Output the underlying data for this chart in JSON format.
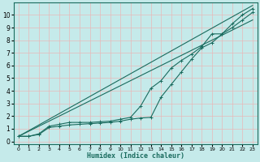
{
  "xlabel": "Humidex (Indice chaleur)",
  "ylabel": "",
  "background_color": "#c5eaea",
  "grid_color": "#e8b8b8",
  "line_color": "#1a6b5e",
  "xlim": [
    -0.5,
    23.5
  ],
  "ylim": [
    -0.2,
    11
  ],
  "xticks": [
    0,
    1,
    2,
    3,
    4,
    5,
    6,
    7,
    8,
    9,
    10,
    11,
    12,
    13,
    14,
    15,
    16,
    17,
    18,
    19,
    20,
    21,
    22,
    23
  ],
  "yticks": [
    0,
    1,
    2,
    3,
    4,
    5,
    6,
    7,
    8,
    9,
    10
  ],
  "series": [
    {
      "x": [
        0,
        1,
        2,
        3,
        4,
        5,
        6,
        7,
        8,
        9,
        10,
        11,
        12,
        13,
        14,
        15,
        16,
        17,
        18,
        19,
        20,
        21,
        22,
        23
      ],
      "y": [
        0.4,
        0.85,
        1.3,
        1.75,
        2.2,
        2.65,
        3.1,
        3.55,
        4.0,
        4.45,
        4.9,
        5.35,
        5.8,
        6.25,
        6.7,
        7.15,
        7.6,
        8.05,
        8.5,
        8.95,
        9.4,
        9.85,
        10.3,
        10.75
      ]
    },
    {
      "x": [
        0,
        1,
        2,
        3,
        4,
        5,
        6,
        7,
        8,
        9,
        10,
        11,
        12,
        13,
        14,
        15,
        16,
        17,
        18,
        19,
        20,
        21,
        22,
        23
      ],
      "y": [
        0.4,
        0.4,
        0.6,
        1.2,
        1.35,
        1.5,
        1.5,
        1.5,
        1.55,
        1.6,
        1.75,
        1.9,
        2.8,
        4.2,
        4.8,
        5.8,
        6.4,
        6.9,
        7.5,
        8.5,
        8.5,
        9.3,
        10.0,
        10.5
      ],
      "marker": "+"
    },
    {
      "x": [
        0,
        1,
        2,
        3,
        4,
        5,
        6,
        7,
        8,
        9,
        10,
        11,
        12,
        13,
        14,
        15,
        16,
        17,
        18,
        19,
        20,
        21,
        22,
        23
      ],
      "y": [
        0.4,
        0.4,
        0.55,
        1.1,
        1.2,
        1.3,
        1.35,
        1.4,
        1.45,
        1.5,
        1.6,
        1.75,
        1.85,
        1.9,
        3.5,
        4.5,
        5.5,
        6.5,
        7.4,
        7.8,
        8.5,
        9.0,
        9.6,
        10.2
      ],
      "marker": "+"
    },
    {
      "x": [
        0,
        1,
        2,
        3,
        4,
        5,
        6,
        7,
        8,
        9,
        10,
        11,
        12,
        13,
        14,
        15,
        16,
        17,
        18,
        19,
        20,
        21,
        22,
        23
      ],
      "y": [
        0.4,
        0.8,
        1.2,
        1.6,
        2.0,
        2.4,
        2.8,
        3.2,
        3.6,
        4.0,
        4.4,
        4.8,
        5.2,
        5.6,
        6.0,
        6.4,
        6.8,
        7.2,
        7.6,
        8.0,
        8.4,
        8.8,
        9.2,
        9.6
      ]
    }
  ]
}
